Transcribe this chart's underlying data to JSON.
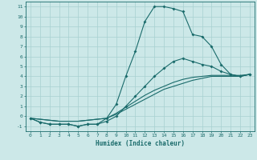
{
  "xlabel": "Humidex (Indice chaleur)",
  "xlim": [
    -0.5,
    23.5
  ],
  "ylim": [
    -1.5,
    11.5
  ],
  "xticks": [
    0,
    1,
    2,
    3,
    4,
    5,
    6,
    7,
    8,
    9,
    10,
    11,
    12,
    13,
    14,
    15,
    16,
    17,
    18,
    19,
    20,
    21,
    22,
    23
  ],
  "yticks": [
    -1,
    0,
    1,
    2,
    3,
    4,
    5,
    6,
    7,
    8,
    9,
    10,
    11
  ],
  "bg_color": "#cce8e8",
  "grid_color": "#a8d0d0",
  "line_color": "#1a6b6b",
  "line1_x": [
    0,
    1,
    2,
    3,
    4,
    5,
    6,
    7,
    8,
    9,
    10,
    11,
    12,
    13,
    14,
    15,
    16,
    17,
    18,
    19,
    20,
    21,
    22,
    23
  ],
  "line1_y": [
    -0.2,
    -0.6,
    -0.8,
    -0.8,
    -0.8,
    -1.0,
    -0.8,
    -0.8,
    -0.2,
    1.2,
    4.0,
    6.5,
    9.5,
    11.0,
    11.0,
    10.8,
    10.5,
    8.2,
    8.0,
    7.0,
    5.2,
    4.2,
    4.0,
    4.2
  ],
  "line2_x": [
    0,
    1,
    2,
    3,
    4,
    5,
    6,
    7,
    8,
    9,
    10,
    11,
    12,
    13,
    14,
    15,
    16,
    17,
    18,
    19,
    20,
    21,
    22,
    23
  ],
  "line2_y": [
    -0.2,
    -0.6,
    -0.8,
    -0.8,
    -0.8,
    -1.0,
    -0.8,
    -0.8,
    -0.5,
    0.0,
    1.0,
    2.0,
    3.0,
    4.0,
    4.8,
    5.5,
    5.8,
    5.5,
    5.2,
    5.0,
    4.5,
    4.2,
    4.0,
    4.2
  ],
  "line3_x": [
    0,
    1,
    2,
    3,
    4,
    5,
    6,
    7,
    8,
    9,
    10,
    11,
    12,
    13,
    14,
    15,
    16,
    17,
    18,
    19,
    20,
    21,
    22,
    23
  ],
  "line3_y": [
    -0.2,
    -0.3,
    -0.4,
    -0.5,
    -0.5,
    -0.5,
    -0.4,
    -0.3,
    -0.2,
    0.2,
    0.7,
    1.2,
    1.7,
    2.2,
    2.7,
    3.0,
    3.3,
    3.6,
    3.8,
    4.0,
    4.0,
    4.0,
    4.0,
    4.2
  ],
  "line4_x": [
    0,
    1,
    2,
    3,
    4,
    5,
    6,
    7,
    8,
    9,
    10,
    11,
    12,
    13,
    14,
    15,
    16,
    17,
    18,
    19,
    20,
    21,
    22,
    23
  ],
  "line4_y": [
    -0.2,
    -0.3,
    -0.4,
    -0.5,
    -0.5,
    -0.5,
    -0.4,
    -0.3,
    -0.2,
    0.3,
    0.9,
    1.5,
    2.1,
    2.6,
    3.0,
    3.4,
    3.7,
    3.9,
    4.0,
    4.1,
    4.1,
    4.1,
    4.1,
    4.2
  ]
}
